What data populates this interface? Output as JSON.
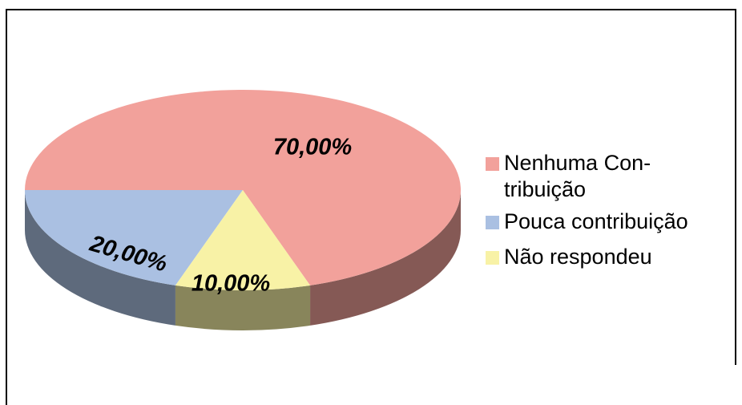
{
  "chart_data": {
    "type": "pie3d",
    "categories": [
      "Nenhuma Con-tribuição",
      "Pouca contribuição",
      "Não respondeu"
    ],
    "values": [
      70,
      20,
      10
    ],
    "value_labels": [
      "70,00%",
      "20,00%",
      "10,00%"
    ],
    "colors": [
      "#f2a19b",
      "#aac0e2",
      "#f8f2a6"
    ],
    "legend": "right"
  }
}
